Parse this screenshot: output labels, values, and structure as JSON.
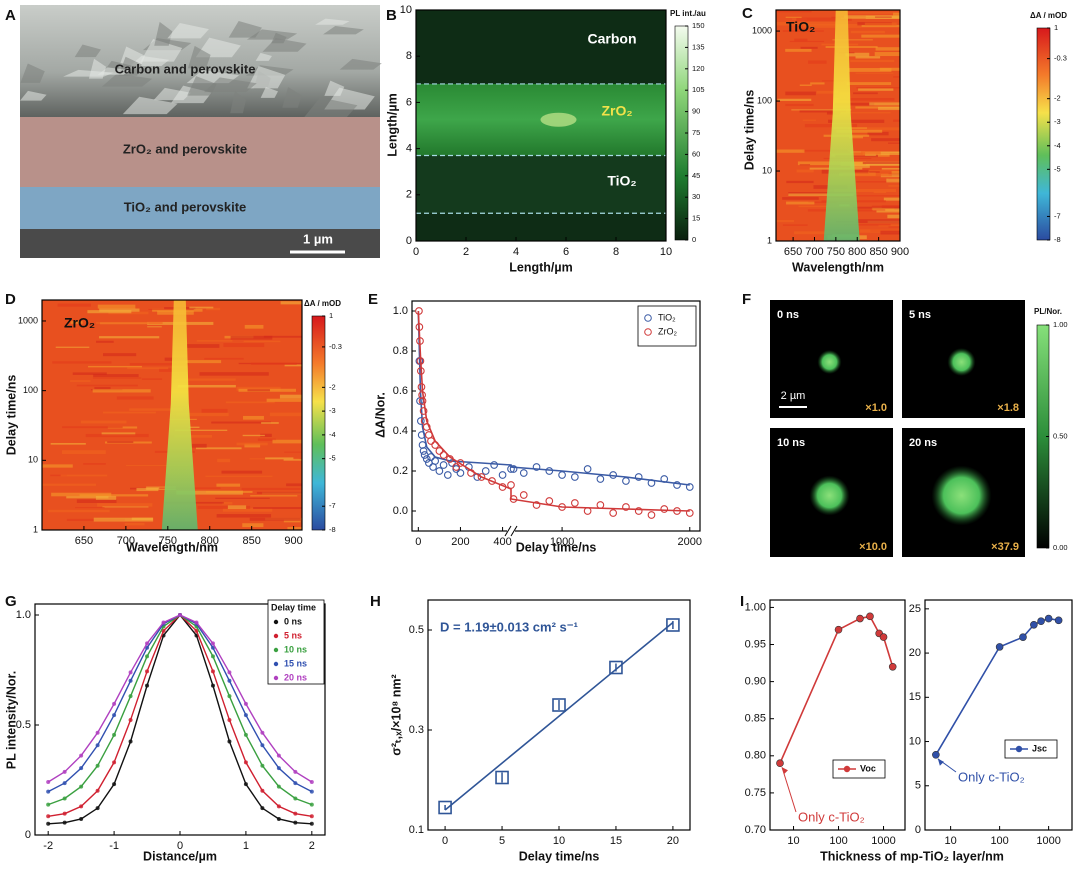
{
  "chart_data": [
    {
      "type": "image",
      "panel": "A",
      "labels": [
        "Carbon and perovskite",
        "ZrO₂ and perovskite",
        "TiO₂ and perovskite"
      ],
      "scale_bar": "1 µm"
    },
    {
      "type": "heatmap",
      "panel": "B",
      "colormap": "green",
      "xlabel": "Length/µm",
      "ylabel": "Length/µm",
      "xlim": [
        0,
        10
      ],
      "xticks": [
        0,
        2,
        4,
        6,
        8,
        10
      ],
      "ylim": [
        0,
        10
      ],
      "yticks": [
        0,
        2,
        4,
        6,
        8,
        10
      ],
      "regions": [
        "Carbon",
        "ZrO₂",
        "TiO₂"
      ],
      "dashed_lines": [
        6.8,
        3.7,
        1.2
      ],
      "colorbar": {
        "title": "PL int./au",
        "lim": [
          0,
          150
        ],
        "ticks": [
          0,
          15,
          30,
          45,
          60,
          75,
          90,
          105,
          120,
          135,
          150
        ]
      }
    },
    {
      "type": "heatmap",
      "panel": "C",
      "colormap": "jet",
      "label": "TiO₂",
      "xlabel": "Wavelength/nm",
      "ylabel": "Delay time/ns",
      "xlim": [
        610,
        900
      ],
      "xticks": [
        650,
        700,
        750,
        800,
        850,
        900
      ],
      "ylim": [
        1,
        2000
      ],
      "ylog": true,
      "yticks": [
        1,
        10,
        100,
        1000
      ],
      "colorbar": {
        "title": "ΔA / mOD",
        "lim": [
          -8,
          1
        ],
        "ticks": [
          1,
          -0.3,
          -2,
          -3,
          -4,
          -5,
          -7,
          -8
        ]
      }
    },
    {
      "type": "heatmap",
      "panel": "D",
      "colormap": "jet",
      "label": "ZrO₂",
      "xlabel": "Wavelength/nm",
      "ylabel": "Delay time/ns",
      "xlim": [
        600,
        910
      ],
      "xticks": [
        650,
        700,
        750,
        800,
        850,
        900
      ],
      "ylim": [
        1,
        2000
      ],
      "ylog": true,
      "yticks": [
        1,
        10,
        100,
        1000
      ],
      "colorbar": {
        "title": "ΔA / mOD",
        "lim": [
          -8,
          1
        ],
        "ticks": [
          1,
          -0.3,
          -2,
          -3,
          -4,
          -5,
          -7,
          -8
        ]
      }
    },
    {
      "type": "scatter",
      "panel": "E",
      "xlabel": "Delay time/ns",
      "ylabel": "ΔA/Nor.",
      "marker": "circle",
      "legend": "upper right",
      "xlim": [
        -30,
        2080
      ],
      "xbreak": [
        440,
        600
      ],
      "xticks": [
        0,
        200,
        400,
        1000,
        2000
      ],
      "ylim": [
        -0.1,
        1.05
      ],
      "yticks": [
        {
          "value": 0,
          "label": "0.0"
        },
        0.2,
        0.4,
        0.6,
        0.8,
        {
          "value": 1,
          "label": "1.0"
        }
      ],
      "series": [
        {
          "name": "TiO₂",
          "color": "#3b5ba5",
          "x": [
            5,
            8,
            12,
            16,
            20,
            25,
            30,
            40,
            50,
            60,
            70,
            80,
            100,
            120,
            140,
            160,
            180,
            200,
            240,
            280,
            320,
            360,
            400,
            440,
            620,
            700,
            800,
            900,
            1000,
            1100,
            1200,
            1300,
            1400,
            1500,
            1600,
            1700,
            1800,
            1900,
            2000
          ],
          "values": [
            0.75,
            0.55,
            0.45,
            0.38,
            0.33,
            0.3,
            0.28,
            0.26,
            0.24,
            0.27,
            0.22,
            0.25,
            0.2,
            0.23,
            0.18,
            0.24,
            0.21,
            0.19,
            0.22,
            0.17,
            0.2,
            0.23,
            0.18,
            0.21,
            0.21,
            0.19,
            0.22,
            0.2,
            0.18,
            0.17,
            0.21,
            0.16,
            0.18,
            0.15,
            0.17,
            0.14,
            0.16,
            0.13,
            0.12
          ],
          "fit": {
            "x": [
              0,
              10,
              20,
              40,
              80,
              150,
              300,
              440,
              600,
              1000,
              1500,
              2000
            ],
            "values": [
              1.0,
              0.6,
              0.42,
              0.32,
              0.27,
              0.25,
              0.24,
              0.23,
              0.22,
              0.2,
              0.17,
              0.13
            ]
          }
        },
        {
          "name": "ZrO₂",
          "color": "#d03a3a",
          "x": [
            3,
            5,
            8,
            10,
            12,
            15,
            18,
            20,
            25,
            30,
            40,
            50,
            60,
            80,
            100,
            120,
            150,
            180,
            200,
            250,
            300,
            350,
            400,
            440,
            620,
            700,
            800,
            900,
            1000,
            1100,
            1200,
            1300,
            1400,
            1500,
            1600,
            1700,
            1800,
            1900,
            2000
          ],
          "values": [
            1.0,
            0.92,
            0.85,
            0.75,
            0.7,
            0.62,
            0.58,
            0.55,
            0.5,
            0.45,
            0.42,
            0.38,
            0.35,
            0.33,
            0.3,
            0.28,
            0.26,
            0.22,
            0.24,
            0.19,
            0.17,
            0.15,
            0.12,
            0.13,
            0.06,
            0.08,
            0.03,
            0.05,
            0.02,
            0.04,
            0.0,
            0.03,
            -0.01,
            0.02,
            0.0,
            -0.02,
            0.01,
            0.0,
            -0.01
          ],
          "fit": {
            "x": [
              0,
              10,
              20,
              40,
              80,
              150,
              300,
              440,
              600,
              1000,
              1500,
              2000
            ],
            "values": [
              1.0,
              0.78,
              0.6,
              0.45,
              0.35,
              0.27,
              0.17,
              0.11,
              0.06,
              0.02,
              0.01,
              0.0
            ]
          }
        }
      ]
    },
    {
      "type": "image_grid",
      "panel": "F",
      "frames": [
        {
          "label": "0 ns",
          "scale": "×1.0"
        },
        {
          "label": "5 ns",
          "scale": "×1.8"
        },
        {
          "label": "10 ns",
          "scale": "×10.0"
        },
        {
          "label": "20 ns",
          "scale": "×37.9"
        }
      ],
      "scale_bar": "2 µm",
      "colorbar": {
        "title": "PL/Nor.",
        "lim": [
          0,
          1
        ],
        "ticks": [
          {
            "value": 0,
            "label": "0.00"
          },
          {
            "value": 0.5,
            "label": "0.50"
          },
          {
            "value": 1,
            "label": "1.00"
          }
        ]
      }
    },
    {
      "type": "line",
      "panel": "G",
      "xlabel": "Distance/µm",
      "ylabel": "PL intensity/Nor.",
      "legend_title": "Delay time",
      "xlim": [
        -2.2,
        2.2
      ],
      "xticks": [
        -2,
        -1,
        0,
        1,
        2
      ],
      "ylim": [
        0,
        1.05
      ],
      "yticks": [
        0,
        0.5,
        {
          "value": 1,
          "label": "1.0"
        }
      ],
      "x": [
        -2,
        -1.75,
        -1.5,
        -1.25,
        -1,
        -0.75,
        -0.5,
        -0.25,
        0,
        0.25,
        0.5,
        0.75,
        1,
        1.25,
        1.5,
        1.75,
        2
      ],
      "series": [
        {
          "name": "0 ns",
          "color": "#111111",
          "values": [
            0.051,
            0.056,
            0.073,
            0.122,
            0.231,
            0.425,
            0.679,
            0.907,
            1,
            0.907,
            0.679,
            0.425,
            0.231,
            0.122,
            0.073,
            0.056,
            0.051
          ]
        },
        {
          "name": "5 ns",
          "color": "#d02030",
          "values": [
            0.085,
            0.097,
            0.13,
            0.201,
            0.33,
            0.523,
            0.744,
            0.928,
            1,
            0.928,
            0.744,
            0.523,
            0.33,
            0.201,
            0.13,
            0.097,
            0.085
          ]
        },
        {
          "name": "10 ns",
          "color": "#3aa040",
          "values": [
            0.138,
            0.166,
            0.22,
            0.315,
            0.455,
            0.631,
            0.812,
            0.948,
            1,
            0.948,
            0.812,
            0.631,
            0.455,
            0.315,
            0.22,
            0.166,
            0.138
          ]
        },
        {
          "name": "15 ns",
          "color": "#3050b0",
          "values": [
            0.197,
            0.236,
            0.304,
            0.408,
            0.545,
            0.701,
            0.851,
            0.96,
            1,
            0.96,
            0.851,
            0.701,
            0.545,
            0.408,
            0.304,
            0.236,
            0.197
          ]
        },
        {
          "name": "20 ns",
          "color": "#b040c0",
          "values": [
            0.241,
            0.287,
            0.361,
            0.465,
            0.596,
            0.739,
            0.871,
            0.966,
            1,
            0.966,
            0.871,
            0.739,
            0.596,
            0.465,
            0.361,
            0.287,
            0.241
          ]
        }
      ]
    },
    {
      "type": "scatter",
      "panel": "H",
      "xlabel": "Delay time/ns",
      "ylabel": "σ²ₜ,ₓ/×10⁸ nm²",
      "annotation": "D = 1.19±0.013 cm² s⁻¹",
      "marker": "square",
      "xlim": [
        -1.5,
        21.5
      ],
      "xticks": [
        0,
        5,
        10,
        15,
        20
      ],
      "ylim": [
        0.1,
        0.56
      ],
      "yticks": [
        0.1,
        0.3,
        0.5
      ],
      "x": [
        0,
        5,
        10,
        15,
        20
      ],
      "series": [
        {
          "color": "#2f5597",
          "values": [
            0.145,
            0.205,
            0.35,
            0.425,
            0.51
          ],
          "errors": [
            0.005,
            0.01,
            0.01,
            0.008,
            0.008
          ],
          "fit": {
            "x": [
              0,
              20
            ],
            "values": [
              0.14,
              0.515
            ]
          }
        }
      ]
    },
    {
      "type": "line",
      "panel": "I",
      "xlabel": "Thickness of mp-TiO₂ layer/nm",
      "xlim": [
        3,
        3000
      ],
      "xlog": true,
      "xticks": [
        10,
        100,
        1000
      ],
      "subplots": [
        {
          "ylim": [
            0.7,
            1.01
          ],
          "yticks": [
            {
              "value": 0.7,
              "label": "0.70"
            },
            0.75,
            {
              "value": 0.8,
              "label": "0.80"
            },
            0.85,
            {
              "value": 0.9,
              "label": "0.90"
            },
            0.95,
            {
              "value": 1,
              "label": "1.00"
            }
          ],
          "annotation": "Only c-TiO₂",
          "series": [
            {
              "name": "Voc",
              "color": "#d03a3a",
              "x": [
                5,
                100,
                300,
                500,
                800,
                1000,
                1600
              ],
              "values": [
                0.79,
                0.97,
                0.985,
                0.988,
                0.965,
                0.96,
                0.92
              ]
            }
          ]
        },
        {
          "ylim": [
            0,
            26
          ],
          "yticks": [
            0,
            5,
            10,
            15,
            20,
            25
          ],
          "annotation": "Only c-TiO₂",
          "series": [
            {
              "name": "Jsc",
              "color": "#3050a8",
              "x": [
                5,
                100,
                300,
                500,
                700,
                1000,
                1600
              ],
              "values": [
                8.5,
                20.7,
                21.8,
                23.2,
                23.6,
                23.9,
                23.7
              ]
            }
          ]
        }
      ]
    }
  ]
}
